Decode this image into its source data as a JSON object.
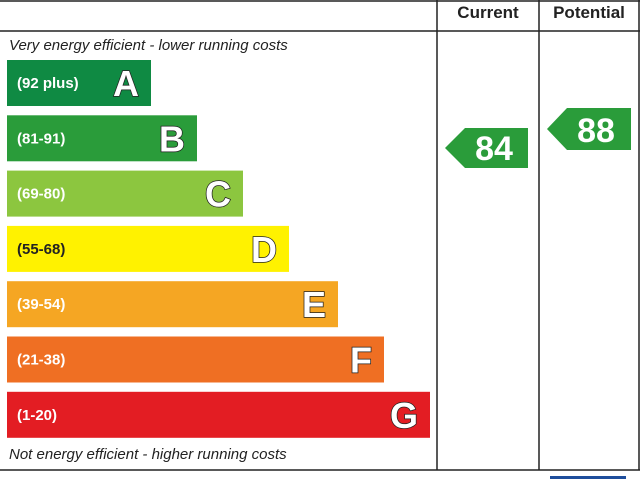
{
  "header": {
    "current": "Current",
    "potential": "Potential"
  },
  "top_note": "Very energy efficient - lower running costs",
  "bottom_note": "Not energy efficient - higher running costs",
  "bands": [
    {
      "range": "(92 plus)",
      "letter": "A"
    },
    {
      "range": "(81-91)",
      "letter": "B"
    },
    {
      "range": "(69-80)",
      "letter": "C"
    },
    {
      "range": "(55-68)",
      "letter": "D"
    },
    {
      "range": "(39-54)",
      "letter": "E"
    },
    {
      "range": "(21-38)",
      "letter": "F"
    },
    {
      "range": "(1-20)",
      "letter": "G"
    }
  ],
  "current": "84",
  "potential": "88"
}
